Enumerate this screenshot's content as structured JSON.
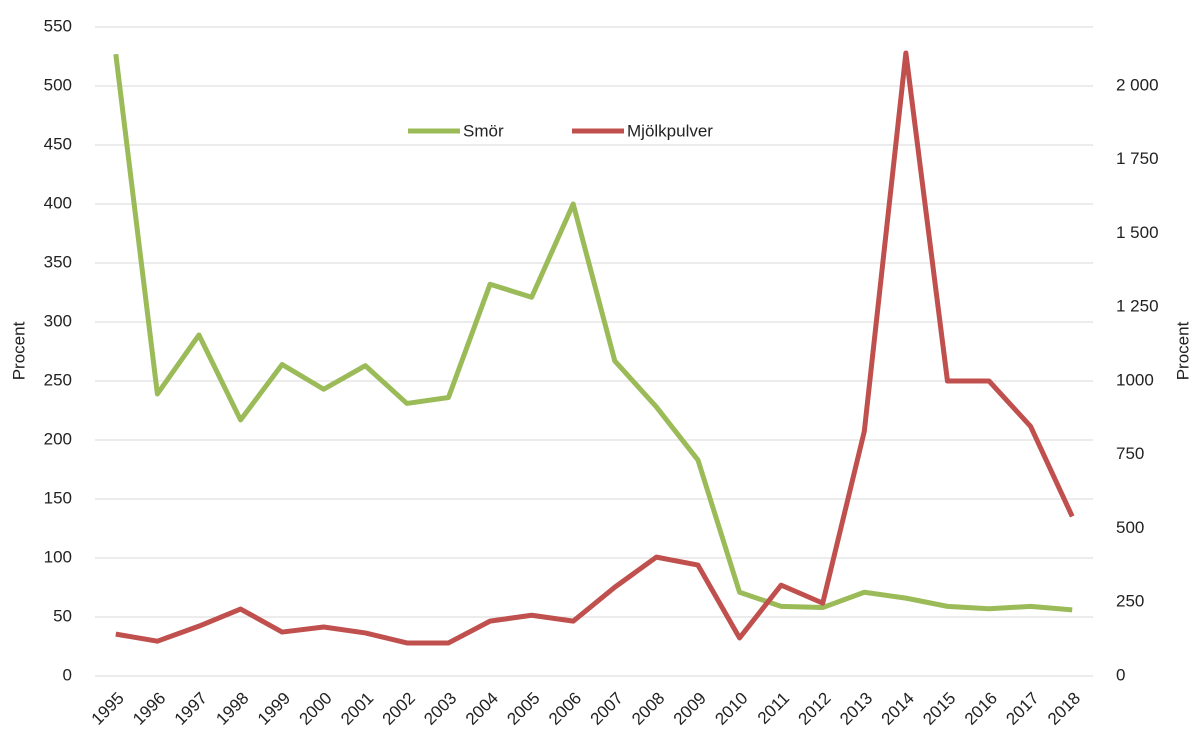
{
  "chart_data": {
    "type": "line",
    "categories": [
      "1995",
      "1996",
      "1997",
      "1998",
      "1999",
      "2000",
      "2001",
      "2002",
      "2003",
      "2004",
      "2005",
      "2006",
      "2007",
      "2008",
      "2009",
      "2010",
      "2011",
      "2012",
      "2013",
      "2014",
      "2015",
      "2016",
      "2017",
      "2018"
    ],
    "series": [
      {
        "name": "Smör",
        "color": "#9bbb59",
        "values": [
          527,
          239,
          289,
          217,
          264,
          243,
          263,
          231,
          236,
          332,
          321,
          400,
          267,
          228,
          183,
          71,
          59,
          58,
          71,
          66,
          59,
          57,
          59,
          56
        ]
      },
      {
        "name": "Mjölkpulver",
        "color": "#c0504d",
        "axis": "y2",
        "values": [
          142,
          118,
          169,
          227,
          149,
          166,
          146,
          112,
          112,
          186,
          206,
          186,
          301,
          403,
          376,
          129,
          308,
          247,
          829,
          2112,
          1000,
          1000,
          846,
          541
        ]
      }
    ],
    "ylabel": "Procent",
    "y2label": "Procent",
    "ylim": [
      0,
      550
    ],
    "yticks": [
      0,
      50,
      100,
      150,
      200,
      250,
      300,
      350,
      400,
      450,
      500,
      550
    ],
    "y2lim": [
      0,
      2200
    ],
    "y2ticks": [
      0,
      250,
      500,
      750,
      1000,
      {
        "value": 1250,
        "label": "1 250"
      },
      {
        "value": 1500,
        "label": "1 500"
      },
      {
        "value": 1750,
        "label": "1 750"
      },
      {
        "value": 2000,
        "label": "2 000"
      }
    ],
    "grid": true,
    "legend": "top"
  }
}
